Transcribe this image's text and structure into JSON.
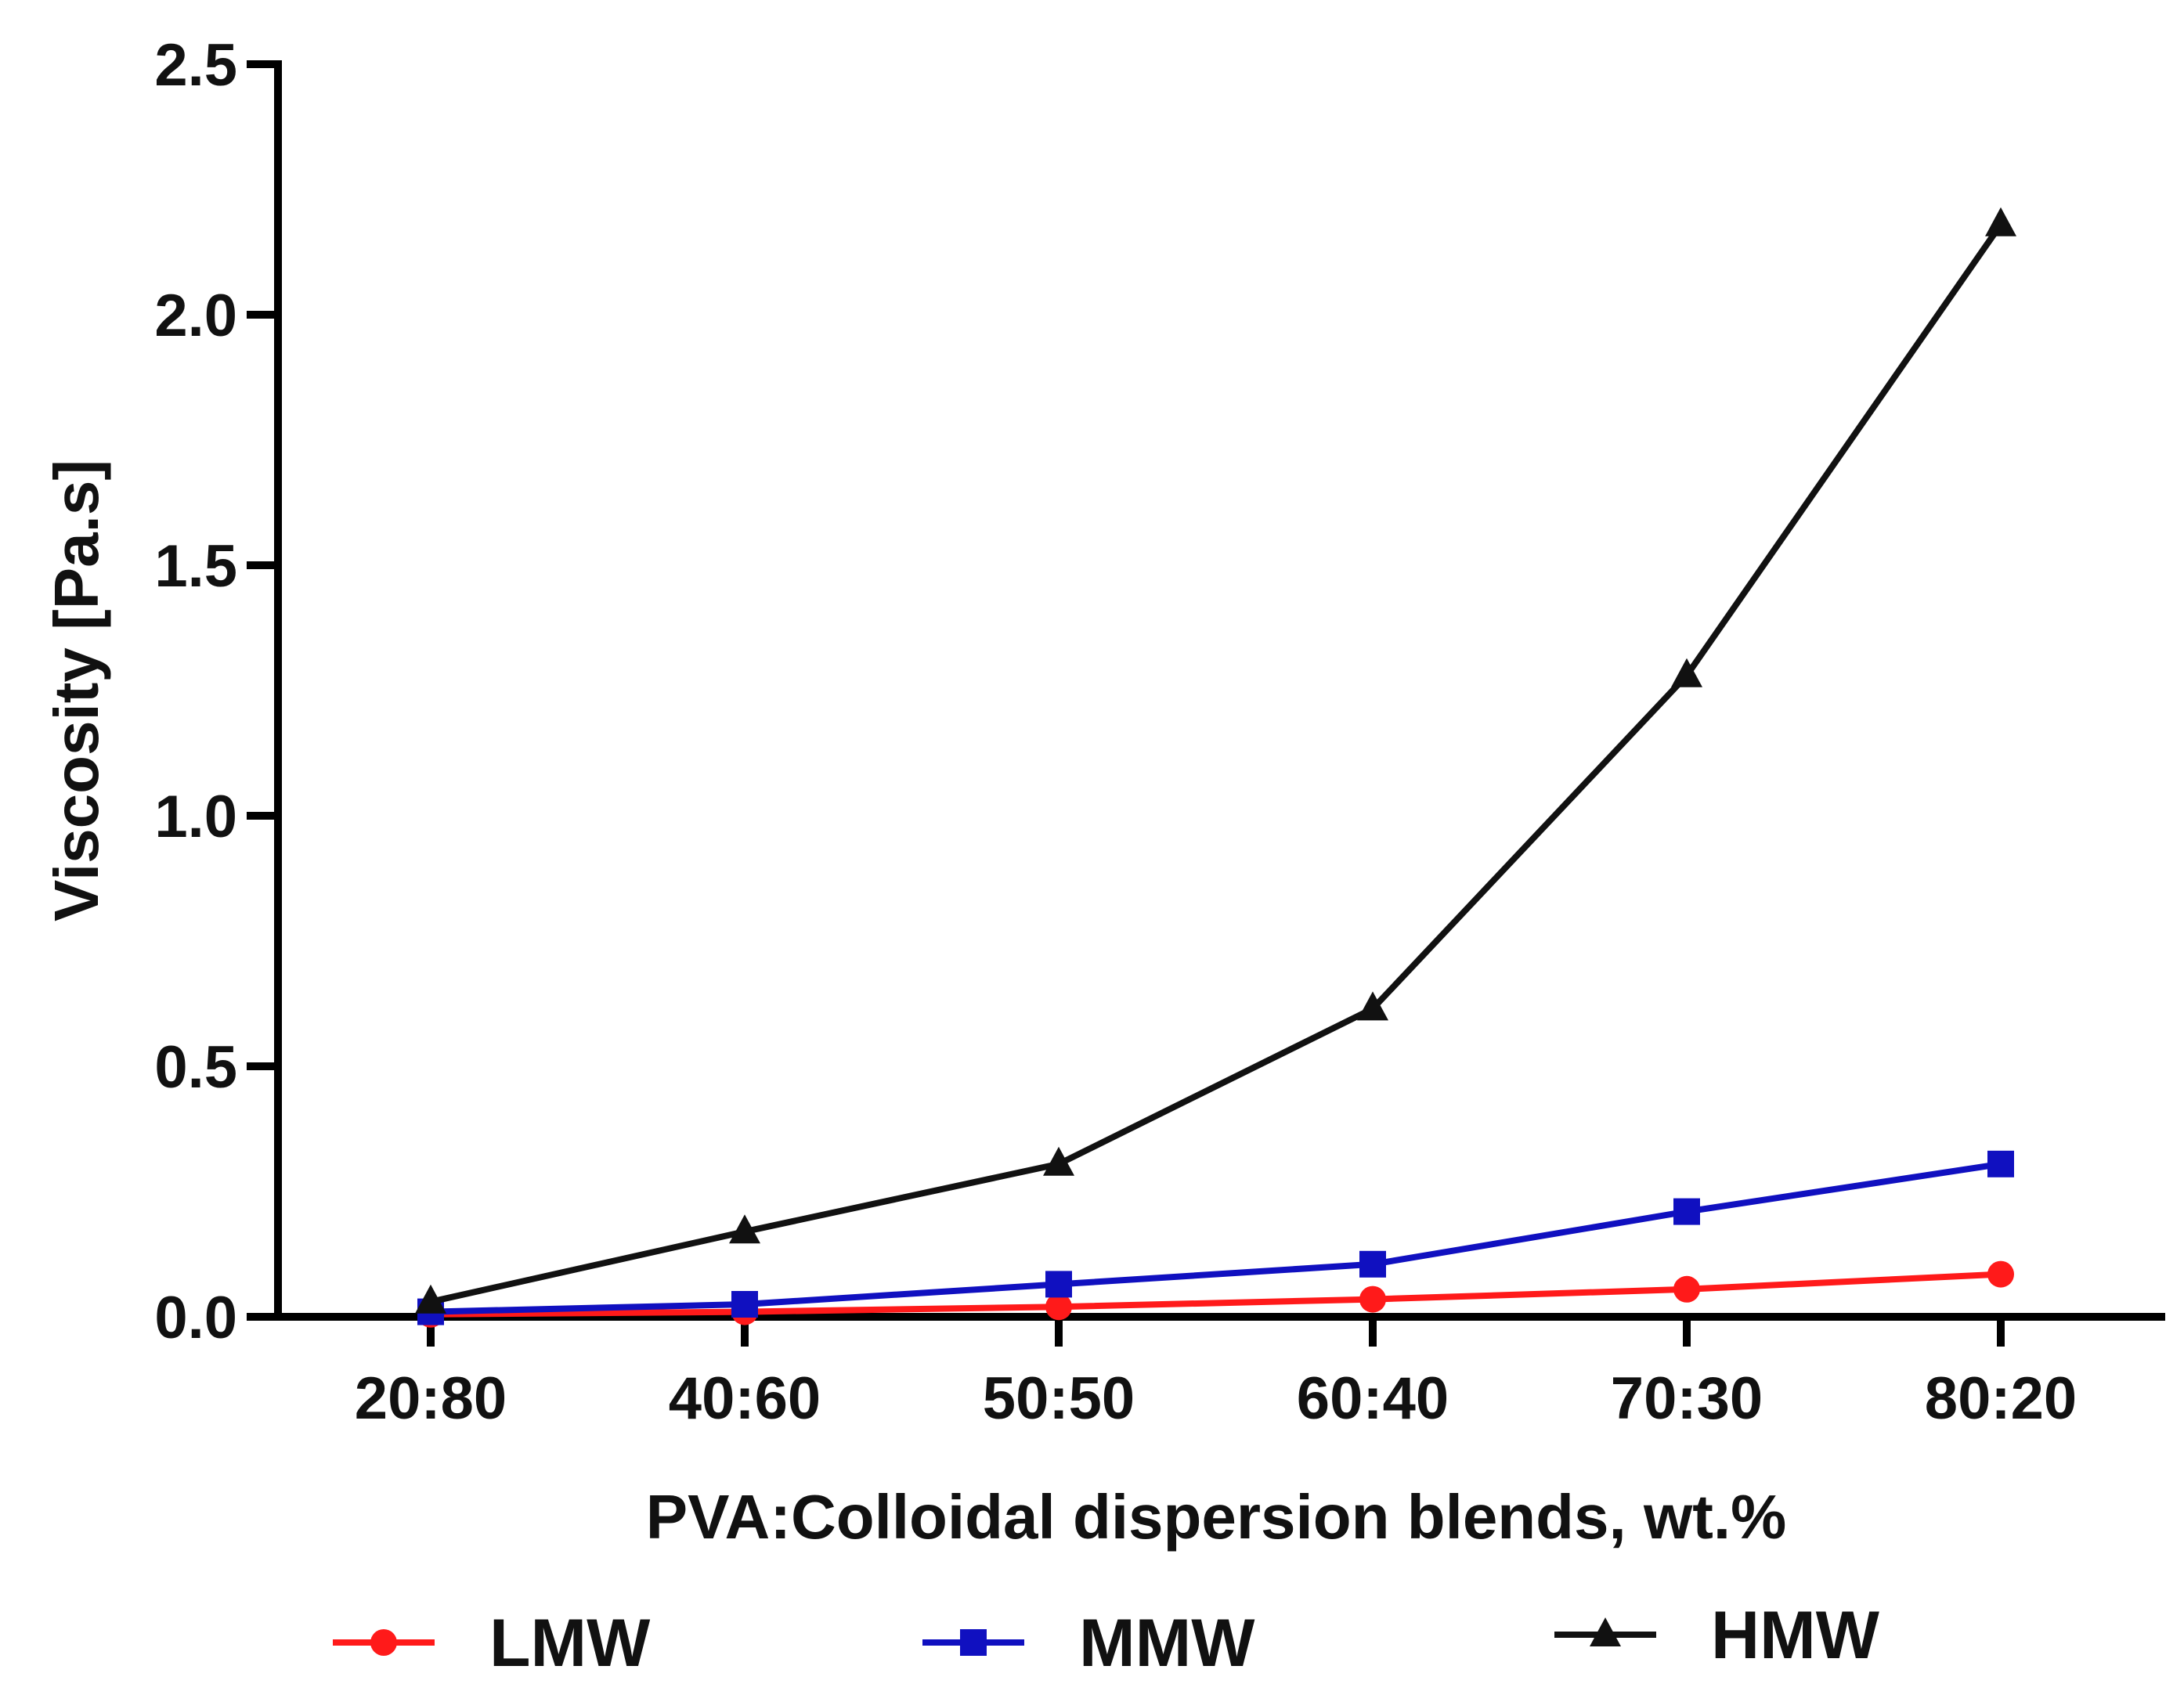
{
  "chart_data": {
    "type": "line",
    "title": "",
    "xlabel": "PVA:Colloidal dispersion blends, wt.%",
    "ylabel": "Viscosity [Pa.s]",
    "categories": [
      "20:80",
      "40:60",
      "50:50",
      "60:40",
      "70:30",
      "80:20"
    ],
    "ylim": [
      0,
      2.5
    ],
    "yticks": [
      0.0,
      0.5,
      1.0,
      1.5,
      2.0,
      2.5
    ],
    "ytick_labels": [
      "0.0",
      "0.5",
      "1.0",
      "1.5",
      "2.0",
      "2.5"
    ],
    "grid": false,
    "legend_position": "bottom",
    "series": [
      {
        "name": "LMW",
        "color": "#ff1a1a",
        "marker": "circle",
        "values": [
          0.005,
          0.01,
          0.02,
          0.035,
          0.055,
          0.085
        ]
      },
      {
        "name": "MMW",
        "color": "#1010c0",
        "marker": "square",
        "values": [
          0.01,
          0.025,
          0.065,
          0.105,
          0.21,
          0.305
        ]
      },
      {
        "name": "HMW",
        "color": "#111111",
        "marker": "triangle",
        "values": [
          0.03,
          0.17,
          0.305,
          0.615,
          1.28,
          2.18
        ]
      }
    ]
  }
}
